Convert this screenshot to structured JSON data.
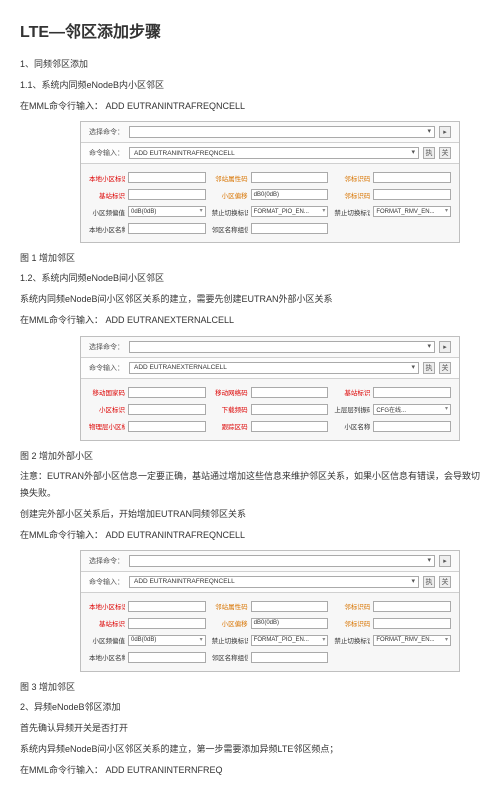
{
  "title": "LTE—邻区添加步骤",
  "s1": "1、同频邻区添加",
  "s1_1": "1.1、系统内同频eNodeB内小区邻区",
  "s1_1b": "在MML命令行输入： ADD EUTRANINTRAFREQNCELL",
  "panel1": {
    "row1_lbl": "选择命令：",
    "row2_lbl": "命令输入：",
    "cmd": "ADD EUTRANINTRAFREQNCELL",
    "btn_exec": "执",
    "btn_help": "关",
    "fields": [
      {
        "l": "本地小区标识",
        "cls": "req",
        "v": ""
      },
      {
        "l": "邻站属性码",
        "cls": "orange",
        "v": ""
      },
      {
        "l": "邻标识码",
        "cls": "orange",
        "v": ""
      },
      {
        "l": "基站标识",
        "cls": "req",
        "v": ""
      },
      {
        "l": "小区偏移",
        "cls": "orange",
        "v": "dB0(0dB)"
      },
      {
        "l": "邻标识码",
        "cls": "orange",
        "v": ""
      },
      {
        "l": "小区频偏值",
        "cls": "norm",
        "sel": true,
        "v": "0dB(0dB)"
      },
      {
        "l": "禁止切换标识",
        "cls": "norm",
        "sel": true,
        "v": "FORMAT_PIO_EN..."
      },
      {
        "l": "禁止切换标识",
        "cls": "norm",
        "sel": true,
        "v": "FORMAT_RMV_EN..."
      },
      {
        "l": "本地小区名称",
        "cls": "norm",
        "v": ""
      },
      {
        "l": "邻区名称组信息",
        "cls": "norm",
        "v": ""
      }
    ]
  },
  "fig1": "图 1 增加邻区",
  "s1_2": "1.2、系统内同频eNodeB间小区邻区",
  "s1_2a": "系统内同频eNodeB间小区邻区关系的建立，需要先创建EUTRAN外部小区关系",
  "s1_2b": "在MML命令行输入： ADD EUTRANEXTERNALCELL",
  "panel2": {
    "row1_lbl": "选择命令：",
    "row2_lbl": "命令输入：",
    "cmd": "ADD EUTRANEXTERNALCELL",
    "btn_exec": "执",
    "btn_help": "关",
    "fields": [
      {
        "l": "移动国家码",
        "cls": "req",
        "v": ""
      },
      {
        "l": "移动网络码",
        "cls": "req",
        "v": ""
      },
      {
        "l": "基站标识",
        "cls": "req",
        "v": ""
      },
      {
        "l": "小区标识",
        "cls": "req",
        "v": ""
      },
      {
        "l": "下载频码",
        "cls": "req",
        "v": ""
      },
      {
        "l": "上层层列振码",
        "cls": "norm",
        "sel": true,
        "v": "CFG在线..."
      },
      {
        "l": "物理层小区标识",
        "cls": "req",
        "v": ""
      },
      {
        "l": "跟踪区码",
        "cls": "req",
        "v": ""
      },
      {
        "l": "小区名称",
        "cls": "norm",
        "v": ""
      }
    ]
  },
  "fig2": "图 2 增加外部小区",
  "s1_2c": "注意：EUTRAN外部小区信息一定要正确，基站通过增加这些信息来维护邻区关系，如果小区信息有错误，会导致切换失败。",
  "s1_2d": "创建完外部小区关系后，开始增加EUTRAN同频邻区关系",
  "s1_2e": "在MML命令行输入： ADD EUTRANINTRAFREQNCELL",
  "panel3": {
    "row1_lbl": "选择命令：",
    "row2_lbl": "命令输入：",
    "cmd": "ADD EUTRANINTRAFREQNCELL",
    "btn_exec": "执",
    "btn_help": "关",
    "fields": [
      {
        "l": "本地小区标识",
        "cls": "req",
        "v": ""
      },
      {
        "l": "邻站属性码",
        "cls": "orange",
        "v": ""
      },
      {
        "l": "邻标识码",
        "cls": "orange",
        "v": ""
      },
      {
        "l": "基站标识",
        "cls": "req",
        "v": ""
      },
      {
        "l": "小区偏移",
        "cls": "orange",
        "v": "dB0(0dB)"
      },
      {
        "l": "邻标识码",
        "cls": "orange",
        "v": ""
      },
      {
        "l": "小区频偏值",
        "cls": "norm",
        "sel": true,
        "v": "0dB(0dB)"
      },
      {
        "l": "禁止切换标识",
        "cls": "norm",
        "sel": true,
        "v": "FORMAT_PIO_EN..."
      },
      {
        "l": "禁止切换标识",
        "cls": "norm",
        "sel": true,
        "v": "FORMAT_RMV_EN..."
      },
      {
        "l": "本地小区名称",
        "cls": "norm",
        "v": ""
      },
      {
        "l": "邻区名称组信息",
        "cls": "norm",
        "v": ""
      }
    ]
  },
  "fig3": "图 3 增加邻区",
  "s2": "2、异频eNodeB邻区添加",
  "s2a": "首先确认异频开关是否打开",
  "s2b": "系统内异频eNodeB间小区邻区关系的建立，第一步需要添加异频LTE邻区频点；",
  "s2c": "在MML命令行输入： ADD EUTRANINTERNFREQ"
}
